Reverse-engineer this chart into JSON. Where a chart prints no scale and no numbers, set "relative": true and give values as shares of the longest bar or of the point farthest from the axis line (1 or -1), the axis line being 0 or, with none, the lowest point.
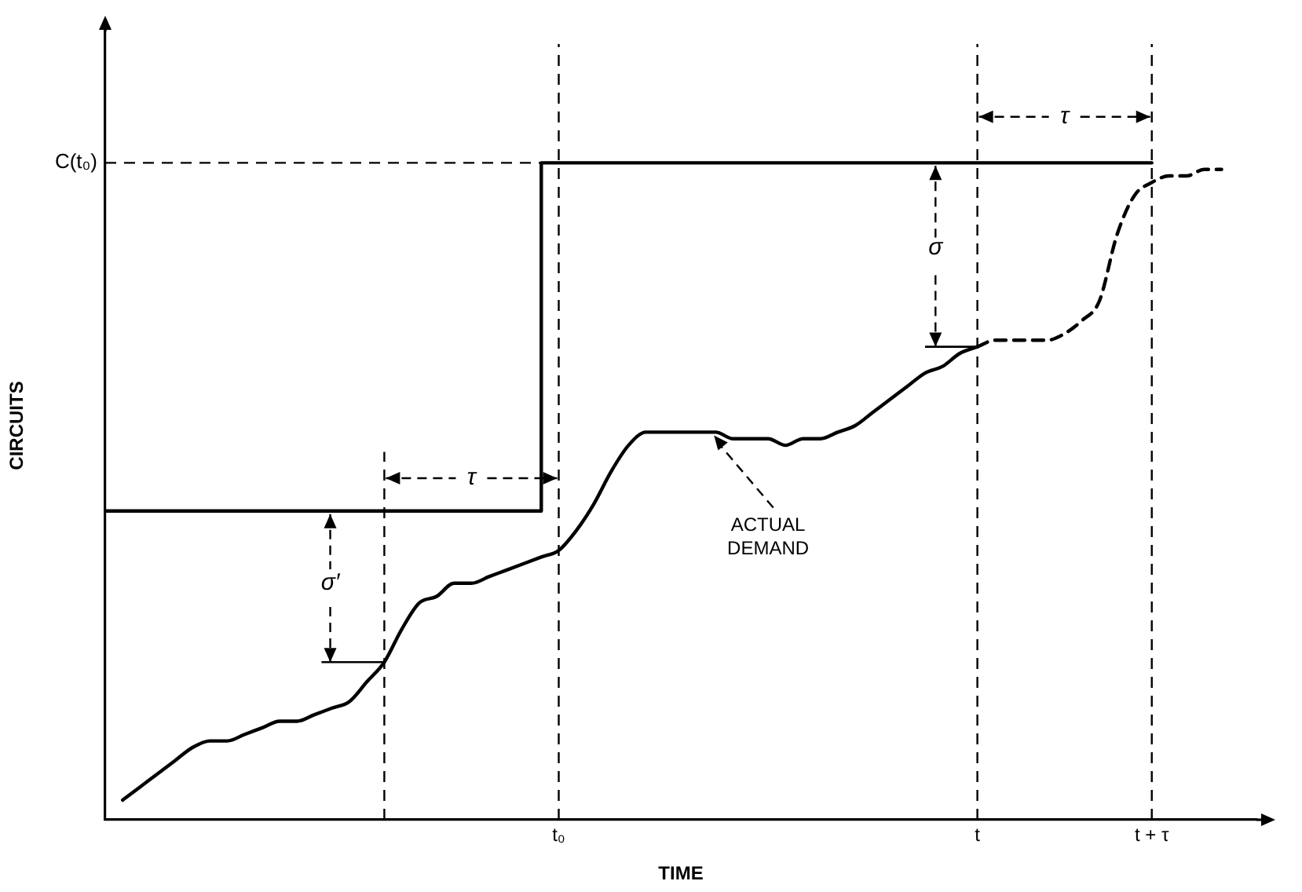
{
  "chart_data": {
    "type": "line",
    "relative": true,
    "xlabel": "TIME",
    "ylabel": "CIRCUITS",
    "categories": [
      null,
      null,
      null,
      null,
      null,
      null,
      null,
      null,
      null,
      null,
      null,
      null,
      null,
      null,
      null,
      null,
      null,
      null,
      null,
      null,
      null,
      null,
      null,
      null,
      null,
      null,
      "t₀",
      null,
      null,
      null,
      null,
      null,
      null,
      null,
      null,
      null,
      null,
      null,
      null,
      null,
      null,
      null,
      null,
      null,
      null,
      null,
      null,
      null,
      null,
      null,
      "t",
      null,
      null,
      null,
      null,
      null,
      null,
      null,
      null,
      null,
      "t + τ",
      null,
      null,
      null,
      null,
      null,
      null
    ],
    "tick_labels": "x",
    "series": [
      {
        "type": "step",
        "color": "#000000",
        "values": [
          0.47,
          0.47,
          0.47,
          0.47,
          0.47,
          0.47,
          0.47,
          0.47,
          0.47,
          0.47,
          0.47,
          0.47,
          0.47,
          0.47,
          0.47,
          0.47,
          0.47,
          0.47,
          0.47,
          0.47,
          0.47,
          0.47,
          0.47,
          0.47,
          0.47,
          0.47,
          1,
          1,
          1,
          1,
          1,
          1,
          1,
          1,
          1,
          1,
          1,
          1,
          1,
          1,
          1,
          1,
          1,
          1,
          1,
          1,
          1,
          1,
          1,
          1,
          1,
          1,
          1,
          1,
          1,
          1,
          1,
          1,
          1,
          1,
          1,
          null,
          null,
          null,
          null,
          null,
          null
        ]
      },
      {
        "color": "#000000",
        "values": [
          null,
          0.03,
          0.05,
          0.07,
          0.09,
          0.11,
          0.12,
          0.12,
          0.13,
          0.14,
          0.15,
          0.15,
          0.16,
          0.17,
          0.18,
          0.21,
          0.24,
          0.29,
          0.33,
          0.34,
          0.36,
          0.36,
          0.37,
          0.38,
          0.39,
          0.4,
          0.41,
          0.44,
          0.48,
          0.53,
          0.57,
          0.59,
          0.59,
          0.59,
          0.59,
          0.59,
          0.58,
          0.58,
          0.58,
          0.57,
          0.58,
          0.58,
          0.59,
          0.6,
          0.62,
          0.64,
          0.66,
          0.68,
          0.69,
          0.71,
          0.72,
          null,
          null,
          null,
          null,
          null,
          null,
          null,
          null,
          null,
          null,
          null,
          null,
          null,
          null,
          null,
          null
        ]
      },
      {
        "color": "#000000",
        "line_style": "dashed",
        "values": [
          null,
          null,
          null,
          null,
          null,
          null,
          null,
          null,
          null,
          null,
          null,
          null,
          null,
          null,
          null,
          null,
          null,
          null,
          null,
          null,
          null,
          null,
          null,
          null,
          null,
          null,
          null,
          null,
          null,
          null,
          null,
          null,
          null,
          null,
          null,
          null,
          null,
          null,
          null,
          null,
          null,
          null,
          null,
          null,
          null,
          null,
          null,
          null,
          null,
          null,
          0.72,
          0.73,
          0.73,
          0.73,
          0.73,
          0.74,
          0.76,
          0.79,
          0.89,
          0.95,
          0.97,
          0.98,
          0.98,
          0.99,
          0.99,
          null,
          null
        ]
      }
    ],
    "ref_lines": [
      {
        "axis": "y",
        "value": 1,
        "label": "C(t₀)",
        "line_style": "dashed"
      },
      {
        "axis": "x",
        "value": "t₀",
        "label": null,
        "line_style": "dashed"
      },
      {
        "axis": "x",
        "value": "t",
        "label": null,
        "line_style": "dashed"
      },
      {
        "axis": "x",
        "value": "t + τ",
        "label": null,
        "line_style": "dashed"
      }
    ],
    "annotations": [
      "σ′",
      "τ",
      "σ",
      "τ",
      "ACTUAL\nDEMAND"
    ]
  }
}
